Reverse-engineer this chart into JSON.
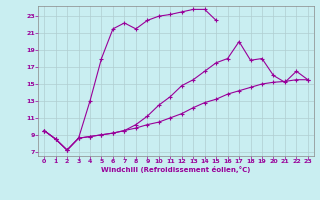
{
  "xlabel": "Windchill (Refroidissement éolien,°C)",
  "bg_color": "#c9eef1",
  "line_color": "#990099",
  "grid_color": "#b0cdd0",
  "xlim": [
    -0.5,
    23.5
  ],
  "ylim": [
    6.5,
    24.2
  ],
  "xticks": [
    0,
    1,
    2,
    3,
    4,
    5,
    6,
    7,
    8,
    9,
    10,
    11,
    12,
    13,
    14,
    15,
    16,
    17,
    18,
    19,
    20,
    21,
    22,
    23
  ],
  "yticks": [
    7,
    9,
    11,
    13,
    15,
    17,
    19,
    21,
    23
  ],
  "line1_x": [
    0,
    1,
    2,
    3,
    4,
    5,
    6,
    7,
    8,
    9,
    10,
    11,
    12,
    13,
    14,
    15
  ],
  "line1_y": [
    9.5,
    8.5,
    7.2,
    8.6,
    13.0,
    18.0,
    21.5,
    22.2,
    21.5,
    22.5,
    23.0,
    23.2,
    23.5,
    23.8,
    23.8,
    22.5
  ],
  "line2_x": [
    0,
    1,
    2,
    3,
    4,
    5,
    6,
    7,
    8,
    9,
    10,
    11,
    12,
    13,
    14,
    15,
    16,
    17,
    18,
    19,
    20,
    21,
    22,
    23
  ],
  "line2_y": [
    9.5,
    8.5,
    7.2,
    8.6,
    8.8,
    9.0,
    9.2,
    9.5,
    10.2,
    11.2,
    12.5,
    13.5,
    14.8,
    15.5,
    16.5,
    17.5,
    18.0,
    20.0,
    17.8,
    18.0,
    16.0,
    15.2,
    16.5,
    15.5
  ],
  "line3_x": [
    0,
    1,
    2,
    3,
    4,
    5,
    6,
    7,
    8,
    9,
    10,
    11,
    12,
    13,
    14,
    15,
    16,
    17,
    18,
    19,
    20,
    21,
    22,
    23
  ],
  "line3_y": [
    9.5,
    8.5,
    7.2,
    8.6,
    8.8,
    9.0,
    9.2,
    9.5,
    9.8,
    10.2,
    10.5,
    11.0,
    11.5,
    12.2,
    12.8,
    13.2,
    13.8,
    14.2,
    14.6,
    15.0,
    15.2,
    15.3,
    15.5,
    15.5
  ]
}
